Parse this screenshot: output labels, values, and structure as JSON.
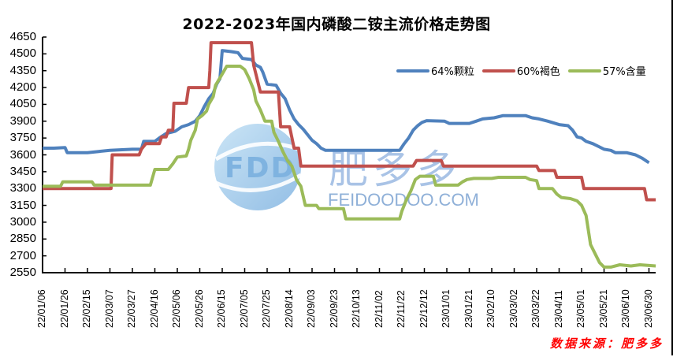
{
  "chart_data": {
    "type": "line",
    "title": "2022-2023年国内磷酸二铵主流价格走势图",
    "xlabel": "",
    "ylabel": "",
    "ylim": [
      2550,
      4650
    ],
    "yticks": [
      4650,
      4500,
      4350,
      4200,
      4050,
      3900,
      3750,
      3600,
      3450,
      3300,
      3150,
      3000,
      2850,
      2700,
      2550
    ],
    "categories": [
      "22/01/06",
      "22/01/26",
      "22/02/15",
      "22/03/07",
      "22/03/27",
      "22/04/16",
      "22/05/06",
      "22/05/26",
      "22/06/15",
      "22/07/05",
      "22/07/25",
      "22/08/14",
      "22/09/03",
      "22/09/23",
      "22/10/13",
      "22/11/02",
      "22/11/22",
      "22/12/12",
      "23/01/01",
      "23/01/21",
      "23/02/10",
      "23/03/02",
      "23/03/22",
      "23/04/11",
      "23/05/01",
      "23/05/21",
      "23/06/10",
      "23/06/30"
    ],
    "x_note": "x values are day offsets from 22/01/06; ticks every 20 days",
    "grid": false,
    "legend_position": "top-right",
    "series": [
      {
        "name": "64%颗粒",
        "color": "#4f81bd",
        "points": [
          [
            0,
            3660
          ],
          [
            10,
            3660
          ],
          [
            20,
            3665
          ],
          [
            22,
            3620
          ],
          [
            40,
            3620
          ],
          [
            50,
            3630
          ],
          [
            60,
            3640
          ],
          [
            80,
            3650
          ],
          [
            88,
            3650
          ],
          [
            90,
            3720
          ],
          [
            100,
            3720
          ],
          [
            104,
            3750
          ],
          [
            110,
            3790
          ],
          [
            118,
            3810
          ],
          [
            124,
            3850
          ],
          [
            130,
            3870
          ],
          [
            136,
            3900
          ],
          [
            140,
            3950
          ],
          [
            144,
            4030
          ],
          [
            148,
            4100
          ],
          [
            152,
            4150
          ],
          [
            155,
            4230
          ],
          [
            158,
            4280
          ],
          [
            160,
            4530
          ],
          [
            168,
            4520
          ],
          [
            174,
            4510
          ],
          [
            178,
            4460
          ],
          [
            186,
            4450
          ],
          [
            190,
            4400
          ],
          [
            194,
            4380
          ],
          [
            196,
            4340
          ],
          [
            200,
            4230
          ],
          [
            208,
            4220
          ],
          [
            212,
            4150
          ],
          [
            216,
            4100
          ],
          [
            220,
            4000
          ],
          [
            224,
            3920
          ],
          [
            228,
            3870
          ],
          [
            232,
            3830
          ],
          [
            236,
            3780
          ],
          [
            240,
            3730
          ],
          [
            244,
            3700
          ],
          [
            248,
            3660
          ],
          [
            252,
            3640
          ],
          [
            300,
            3640
          ],
          [
            318,
            3640
          ],
          [
            322,
            3700
          ],
          [
            326,
            3750
          ],
          [
            330,
            3820
          ],
          [
            334,
            3860
          ],
          [
            338,
            3890
          ],
          [
            342,
            3905
          ],
          [
            358,
            3900
          ],
          [
            362,
            3880
          ],
          [
            380,
            3880
          ],
          [
            386,
            3900
          ],
          [
            392,
            3920
          ],
          [
            402,
            3930
          ],
          [
            410,
            3950
          ],
          [
            430,
            3950
          ],
          [
            436,
            3930
          ],
          [
            442,
            3920
          ],
          [
            450,
            3900
          ],
          [
            460,
            3870
          ],
          [
            468,
            3860
          ],
          [
            472,
            3820
          ],
          [
            476,
            3760
          ],
          [
            480,
            3750
          ],
          [
            484,
            3720
          ],
          [
            490,
            3700
          ],
          [
            496,
            3670
          ],
          [
            500,
            3650
          ],
          [
            506,
            3640
          ],
          [
            510,
            3620
          ],
          [
            520,
            3620
          ],
          [
            528,
            3600
          ],
          [
            534,
            3570
          ],
          [
            540,
            3530
          ]
        ]
      },
      {
        "name": "60%褐色",
        "color": "#c0504d",
        "points": [
          [
            0,
            3300
          ],
          [
            60,
            3300
          ],
          [
            61,
            3300
          ],
          [
            62,
            3600
          ],
          [
            86,
            3600
          ],
          [
            88,
            3650
          ],
          [
            92,
            3700
          ],
          [
            104,
            3700
          ],
          [
            106,
            3760
          ],
          [
            110,
            3760
          ],
          [
            112,
            3820
          ],
          [
            116,
            3820
          ],
          [
            117,
            4060
          ],
          [
            128,
            4060
          ],
          [
            130,
            4200
          ],
          [
            148,
            4200
          ],
          [
            149,
            4350
          ],
          [
            150,
            4600
          ],
          [
            186,
            4600
          ],
          [
            188,
            4400
          ],
          [
            194,
            4160
          ],
          [
            210,
            4160
          ],
          [
            212,
            3850
          ],
          [
            220,
            3850
          ],
          [
            224,
            3660
          ],
          [
            228,
            3660
          ],
          [
            230,
            3500
          ],
          [
            330,
            3500
          ],
          [
            333,
            3550
          ],
          [
            355,
            3550
          ],
          [
            357,
            3500
          ],
          [
            440,
            3500
          ],
          [
            442,
            3460
          ],
          [
            456,
            3460
          ],
          [
            458,
            3400
          ],
          [
            480,
            3400
          ],
          [
            482,
            3300
          ],
          [
            536,
            3300
          ],
          [
            538,
            3200
          ],
          [
            546,
            3200
          ]
        ]
      },
      {
        "name": "57%含量",
        "color": "#9bbb59",
        "points": [
          [
            0,
            3320
          ],
          [
            16,
            3320
          ],
          [
            18,
            3360
          ],
          [
            44,
            3360
          ],
          [
            46,
            3330
          ],
          [
            96,
            3330
          ],
          [
            100,
            3470
          ],
          [
            112,
            3470
          ],
          [
            116,
            3520
          ],
          [
            120,
            3580
          ],
          [
            128,
            3590
          ],
          [
            130,
            3650
          ],
          [
            132,
            3730
          ],
          [
            136,
            3820
          ],
          [
            138,
            3920
          ],
          [
            142,
            3950
          ],
          [
            146,
            3990
          ],
          [
            148,
            4050
          ],
          [
            152,
            4120
          ],
          [
            154,
            4220
          ],
          [
            160,
            4320
          ],
          [
            164,
            4390
          ],
          [
            176,
            4390
          ],
          [
            180,
            4360
          ],
          [
            184,
            4280
          ],
          [
            188,
            4180
          ],
          [
            190,
            4080
          ],
          [
            194,
            4000
          ],
          [
            198,
            3900
          ],
          [
            204,
            3900
          ],
          [
            206,
            3800
          ],
          [
            210,
            3720
          ],
          [
            214,
            3630
          ],
          [
            218,
            3550
          ],
          [
            222,
            3500
          ],
          [
            226,
            3380
          ],
          [
            230,
            3320
          ],
          [
            234,
            3150
          ],
          [
            244,
            3150
          ],
          [
            246,
            3120
          ],
          [
            268,
            3120
          ],
          [
            270,
            3030
          ],
          [
            318,
            3030
          ],
          [
            320,
            3100
          ],
          [
            324,
            3200
          ],
          [
            328,
            3280
          ],
          [
            332,
            3380
          ],
          [
            336,
            3410
          ],
          [
            348,
            3410
          ],
          [
            350,
            3330
          ],
          [
            370,
            3330
          ],
          [
            374,
            3360
          ],
          [
            378,
            3380
          ],
          [
            384,
            3390
          ],
          [
            400,
            3390
          ],
          [
            406,
            3400
          ],
          [
            430,
            3400
          ],
          [
            434,
            3380
          ],
          [
            440,
            3370
          ],
          [
            442,
            3300
          ],
          [
            454,
            3300
          ],
          [
            458,
            3250
          ],
          [
            462,
            3220
          ],
          [
            470,
            3210
          ],
          [
            476,
            3190
          ],
          [
            480,
            3150
          ],
          [
            484,
            3060
          ],
          [
            488,
            2800
          ],
          [
            492,
            2720
          ],
          [
            496,
            2640
          ],
          [
            500,
            2600
          ],
          [
            506,
            2600
          ],
          [
            514,
            2620
          ],
          [
            524,
            2610
          ],
          [
            532,
            2620
          ],
          [
            546,
            2610
          ]
        ]
      }
    ]
  },
  "title": "2022-2023年国内磷酸二铵主流价格走势图",
  "legend": [
    {
      "label": "64%颗粒",
      "color": "#4f81bd"
    },
    {
      "label": "60%褐色",
      "color": "#c0504d"
    },
    {
      "label": "57%含量",
      "color": "#9bbb59"
    }
  ],
  "watermark": {
    "badge": "FDD",
    "brand": "肥多多",
    "url": "FEIDOODOO.COM"
  },
  "source": "数据来源：肥多多"
}
